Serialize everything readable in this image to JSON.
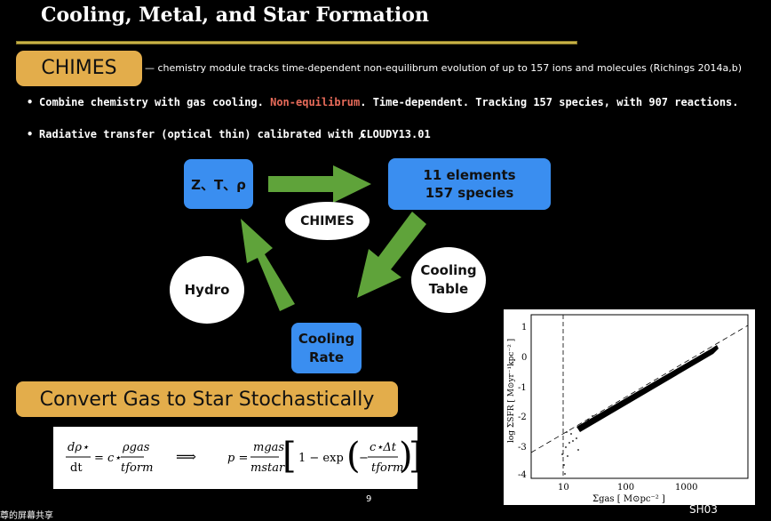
{
  "title": "Cooling, Metal, and Star Formation",
  "chimes": {
    "badge": "CHIMES",
    "description": "— chemistry module tracks time-dependent non-equilibrum evolution of up to 157 ions and molecules (Richings 2014a,b)"
  },
  "bullets": [
    {
      "pre": "Combine chemistry with gas cooling. ",
      "highlight": "Non-equilibrum",
      "post": ". Time-dependent. Tracking 157 species, with 907 reactions."
    },
    {
      "pre": "Radiative transfer (optical thin) calibrated with CLOUDY",
      "post": "13.01"
    }
  ],
  "diagram": {
    "zt": "Z、T、ρ",
    "species_line1": "11 elements",
    "species_line2": "157 species",
    "chimes_label": "CHIMES",
    "cooling_table_line1": "Cooling",
    "cooling_table_line2": "Table",
    "cooling_rate_line1": "Cooling",
    "cooling_rate_line2": "Rate",
    "hydro": "Hydro"
  },
  "convert": "Convert Gas to Star Stochastically",
  "equation": {
    "lhs_num": "dρ⋆",
    "lhs_den": "dt",
    "eq1": "= c⋆",
    "rho_gas": "ρgas",
    "t_form": "tform",
    "implies": "⟹",
    "p": "p =",
    "m_gas": "mgas",
    "m_star": "mstar",
    "one_minus": "1 − exp",
    "c_dt": "c⋆Δt",
    "t_form2": "tform"
  },
  "page_number": "9",
  "slide_code": "SH03",
  "bottom_text": "尊的屏幕共享",
  "plot": {
    "ylabel": "log ΣSFR [ M⊙yr⁻¹kpc⁻² ]",
    "xlabel": "Σgas [ M⊙pc⁻² ]",
    "y_ticks": [
      "1",
      "0",
      "-1",
      "-2",
      "-3",
      "-4"
    ],
    "x_ticks": [
      "10",
      "100",
      "1000"
    ]
  },
  "colors": {
    "accent": "#e3ad4b",
    "blue": "#3a8ef0",
    "green": "#5fa33a",
    "highlight": "#e86b5a"
  }
}
